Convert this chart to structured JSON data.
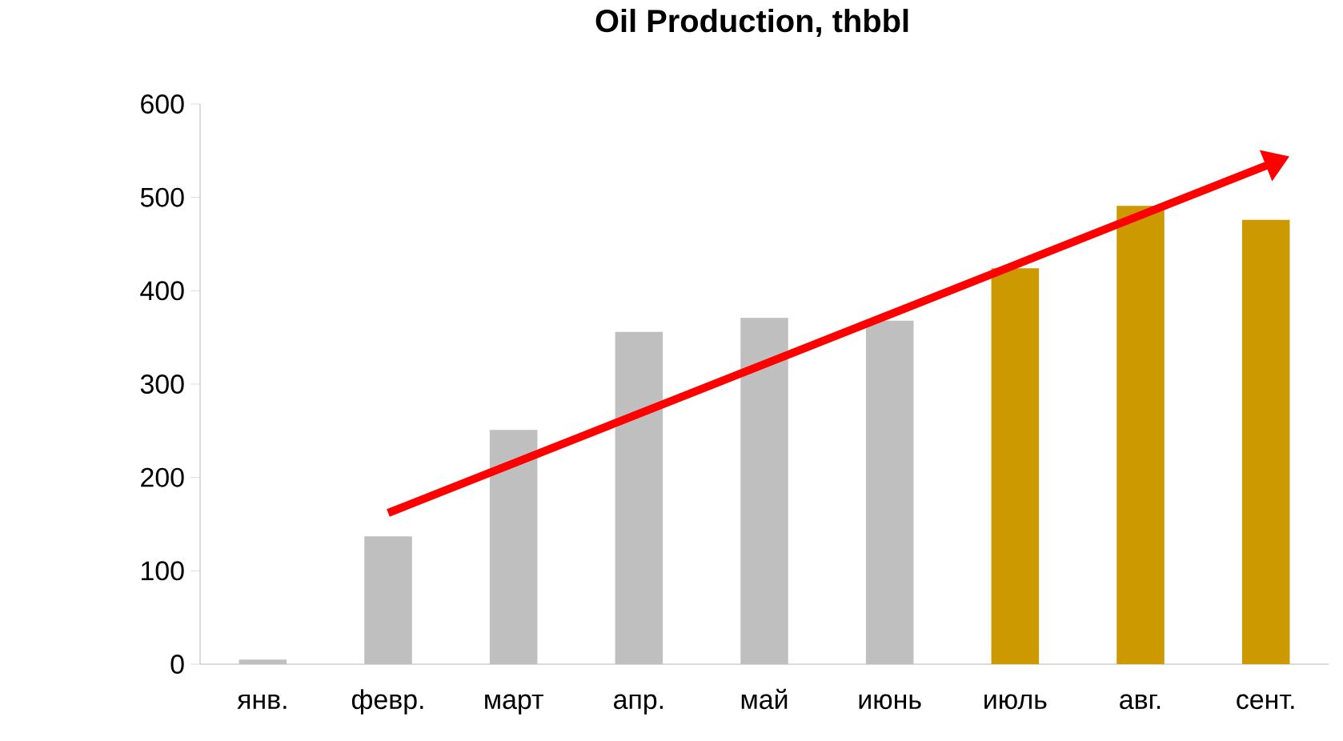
{
  "chart_data": {
    "type": "bar",
    "title": "Oil Production, thbbl",
    "categories": [
      "янв.",
      "февр.",
      "март",
      "апр.",
      "май",
      "июнь",
      "июль",
      "авг.",
      "сент."
    ],
    "values": [
      5,
      137,
      251,
      356,
      371,
      368,
      424,
      491,
      476
    ],
    "colors": [
      "#bfbfbf",
      "#bfbfbf",
      "#bfbfbf",
      "#bfbfbf",
      "#bfbfbf",
      "#bfbfbf",
      "#cc9900",
      "#cc9900",
      "#cc9900"
    ],
    "series": [
      {
        "type": "line",
        "x": [
          "февр.",
          "сент."
        ],
        "values": [
          162,
          534
        ],
        "color": "#ff0000"
      }
    ],
    "ylim": [
      0,
      600
    ],
    "yticks": [
      0,
      100,
      200,
      300,
      400,
      500,
      600
    ],
    "grid": false
  }
}
